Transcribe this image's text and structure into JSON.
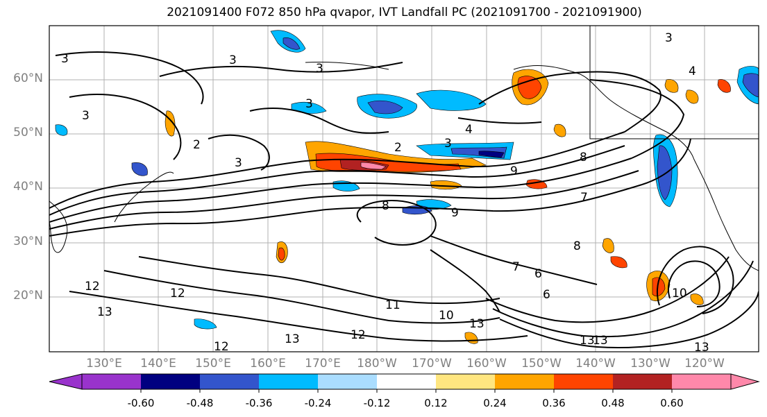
{
  "title": "2021091400 F072 850 hPa qvapor, IVT Landfall PC (2021091700 - 2021091900)",
  "lat_labels": [
    "60°N",
    "50°N",
    "40°N",
    "30°N",
    "20°N"
  ],
  "lon_labels": [
    "130°E",
    "140°E",
    "150°E",
    "160°E",
    "170°E",
    "180°W",
    "170°W",
    "160°W",
    "150°W",
    "140°W",
    "130°W",
    "120°W"
  ],
  "colorbar": {
    "colors": [
      "#9933cc",
      "#000080",
      "#3355cc",
      "#00bbff",
      "#aaddff",
      "#ffffff",
      "#ffe680",
      "#ffa500",
      "#ff4400",
      "#b22222",
      "#ff88aa"
    ],
    "tick_labels": [
      "-0.60",
      "-0.48",
      "-0.36",
      "-0.24",
      "-0.12",
      "0.12",
      "0.24",
      "0.36",
      "0.48",
      "0.60"
    ]
  },
  "contour_labels": [
    "3",
    "3",
    "3",
    "3",
    "3",
    "2",
    "3",
    "4",
    "2",
    "3",
    "9",
    "8",
    "8",
    "7",
    "9",
    "6",
    "7",
    "6",
    "8",
    "11",
    "10",
    "12",
    "13",
    "12",
    "13",
    "10",
    "13",
    "12",
    "13",
    "12",
    "3",
    "4",
    "13",
    "13"
  ]
}
